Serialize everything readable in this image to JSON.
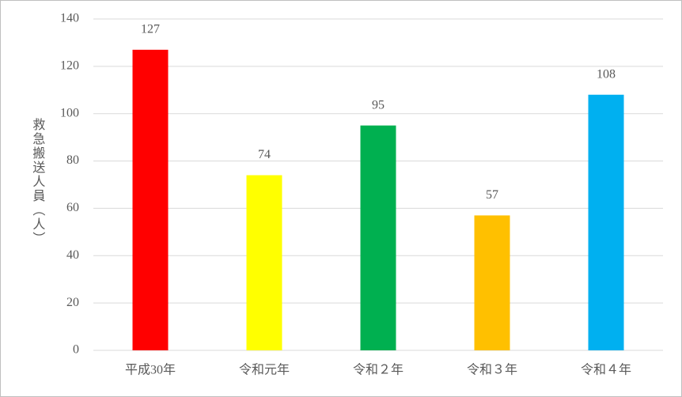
{
  "chart_data": {
    "type": "bar",
    "y_label": "救急搬送人員（人）",
    "categories": [
      "平成30年",
      "令和元年",
      "令和２年",
      "令和３年",
      "令和４年"
    ],
    "values": [
      127,
      74,
      95,
      57,
      108
    ],
    "colors": [
      "#ff0000",
      "#ffff00",
      "#00b050",
      "#ffc000",
      "#00b0f0"
    ],
    "ylim": [
      0,
      140
    ],
    "yticks": [
      0,
      20,
      40,
      60,
      80,
      100,
      120,
      140
    ],
    "grid": true
  }
}
